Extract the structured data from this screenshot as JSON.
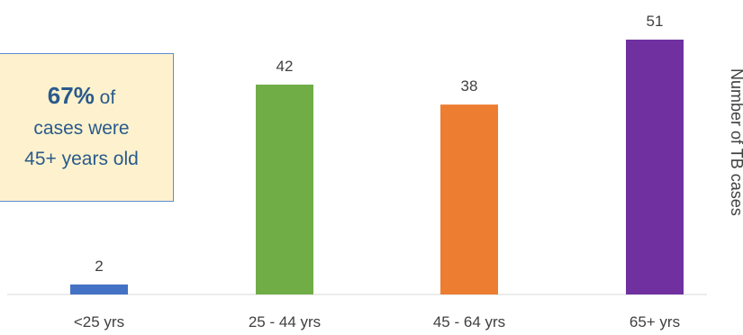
{
  "callout": {
    "percent": "67%",
    "line1_rest": " of",
    "line2": "cases were",
    "line3": "45+ years old"
  },
  "chart_data": {
    "type": "bar",
    "title": "",
    "xlabel": "",
    "ylabel": "Number of TB cases",
    "categories": [
      "<25 yrs",
      "25 - 44 yrs",
      "45 - 64 yrs",
      "65+ yrs"
    ],
    "values": [
      2,
      42,
      38,
      51
    ],
    "colors": [
      "#4472c4",
      "#70ad47",
      "#ed7d31",
      "#7030a0"
    ],
    "ylim": [
      0,
      60
    ],
    "grid": false,
    "legend": "none",
    "data_labels": true
  }
}
